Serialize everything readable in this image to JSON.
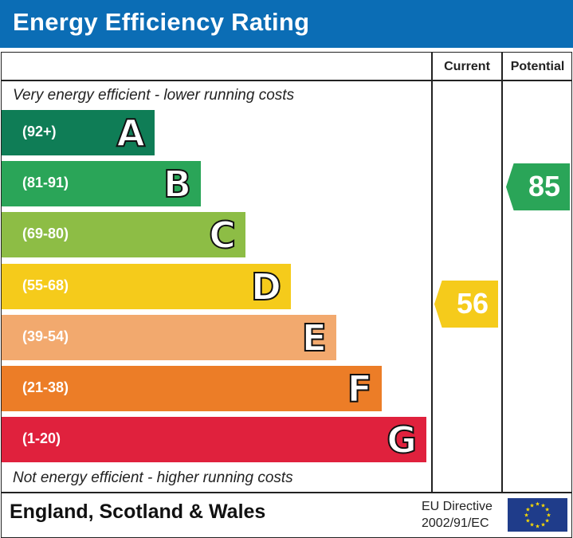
{
  "title": "Energy Efficiency Rating",
  "columns": {
    "current": "Current",
    "potential": "Potential"
  },
  "notes": {
    "top": "Very energy efficient - lower running costs",
    "bottom": "Not energy efficient - higher running costs"
  },
  "footer": {
    "country": "England, Scotland & Wales",
    "directive_line1": "EU Directive",
    "directive_line2": "2002/91/EC",
    "flag_icon": "eu-flag-icon"
  },
  "chart_data": {
    "type": "bar",
    "categories": [
      "A",
      "B",
      "C",
      "D",
      "E",
      "F",
      "G"
    ],
    "ranges": [
      "(92+)",
      "(81-91)",
      "(69-80)",
      "(55-68)",
      "(39-54)",
      "(21-38)",
      "(1-20)"
    ],
    "colors": [
      "#0f7d56",
      "#2aa558",
      "#8dbd45",
      "#f5cb1b",
      "#f2a96e",
      "#ec7d27",
      "#e0213d"
    ],
    "current": {
      "value": "56",
      "band": "D",
      "color": "#f5cb1b"
    },
    "potential": {
      "value": "85",
      "band": "B",
      "color": "#2aa558"
    }
  }
}
